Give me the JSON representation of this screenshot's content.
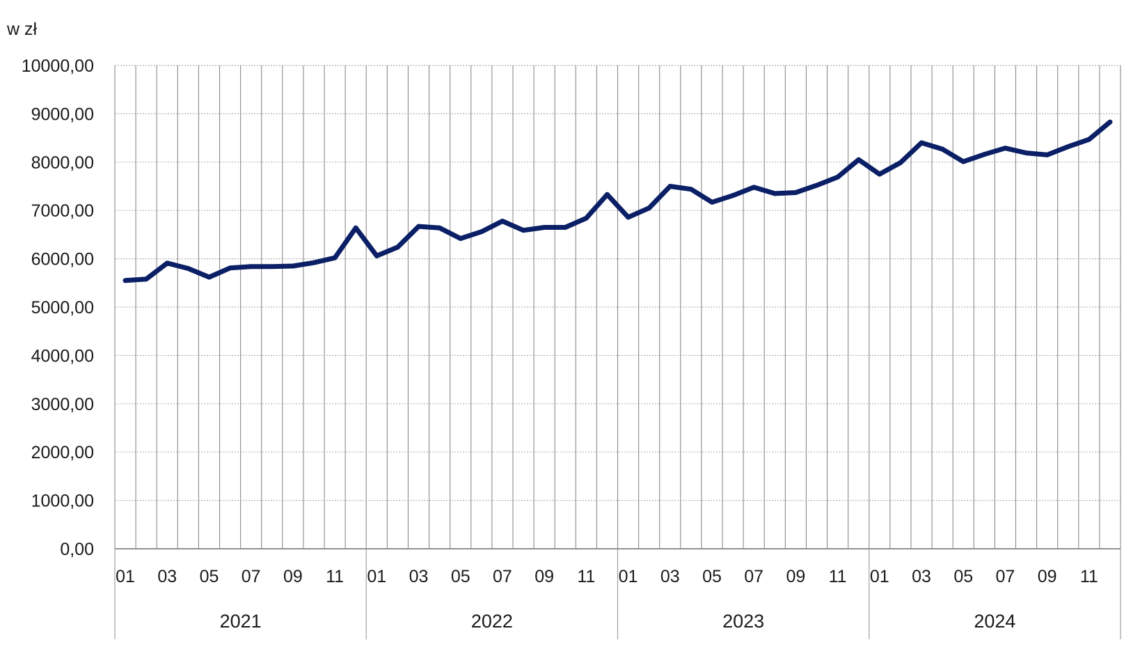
{
  "chart_data": {
    "type": "line",
    "unit_label": "w zł",
    "title": "",
    "xlabel": "",
    "ylabel": "",
    "ylim": [
      0,
      10000
    ],
    "y_ticks": [
      "0,00",
      "1000,00",
      "2000,00",
      "3000,00",
      "4000,00",
      "5000,00",
      "6000,00",
      "7000,00",
      "8000,00",
      "9000,00",
      "10000,00"
    ],
    "x_tick_labels": [
      "01",
      "03",
      "05",
      "07",
      "09",
      "11"
    ],
    "years": [
      "2021",
      "2022",
      "2023",
      "2024"
    ],
    "months_per_year": 12,
    "grid": true,
    "legend": "none",
    "series": [
      {
        "color": "#0b1f66",
        "values": [
          5550,
          5580,
          5910,
          5800,
          5620,
          5810,
          5840,
          5840,
          5850,
          5920,
          6020,
          6640,
          6060,
          6240,
          6670,
          6640,
          6420,
          6560,
          6780,
          6590,
          6650,
          6650,
          6840,
          7330,
          6860,
          7050,
          7500,
          7440,
          7170,
          7310,
          7480,
          7350,
          7370,
          7520,
          7690,
          8050,
          7750,
          7990,
          8400,
          8270,
          8010,
          8160,
          8290,
          8190,
          8150,
          8320,
          8470,
          8830
        ]
      }
    ]
  }
}
